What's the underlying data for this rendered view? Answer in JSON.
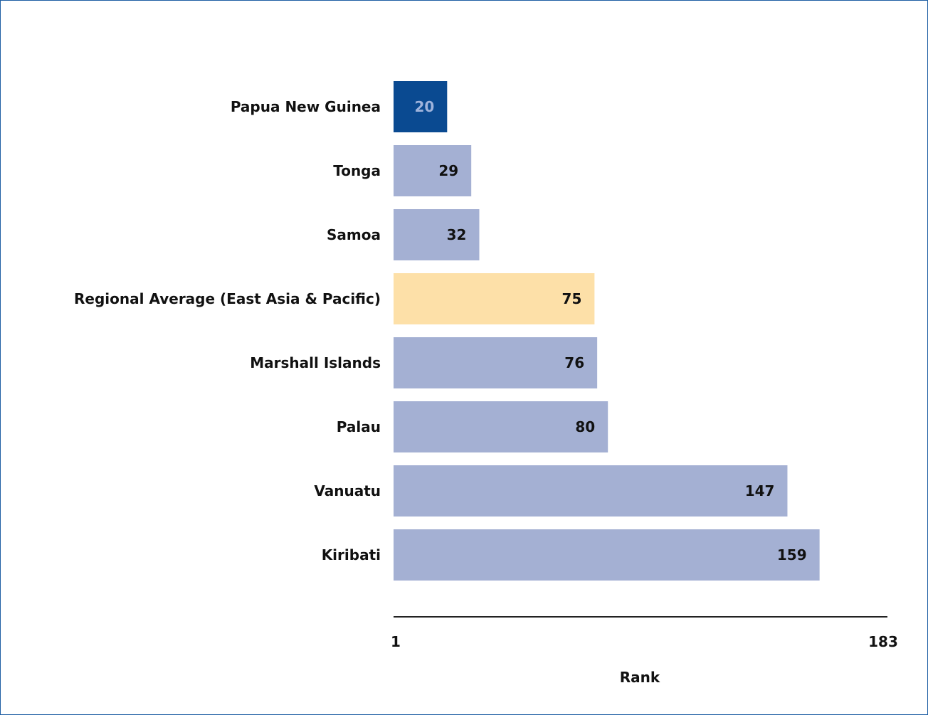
{
  "chart_data": {
    "type": "bar",
    "orientation": "horizontal",
    "title": "",
    "xlabel": "Rank",
    "ylabel": "",
    "xlim": [
      1,
      183
    ],
    "x_ticks": [
      "1",
      "183"
    ],
    "categories": [
      "Papua New Guinea",
      "Tonga",
      "Samoa",
      "Regional Average (East Asia & Pacific)",
      "Marshall Islands",
      "Palau",
      "Vanuatu",
      "Kiribati"
    ],
    "values": [
      20,
      29,
      32,
      75,
      76,
      80,
      147,
      159
    ],
    "bar_colors": [
      "#0a4a91",
      "#a4b0d3",
      "#a4b0d3",
      "#fde0a8",
      "#a4b0d3",
      "#a4b0d3",
      "#a4b0d3",
      "#a4b0d3"
    ],
    "value_label_colors": [
      "#9fb4dc",
      "#111111",
      "#111111",
      "#111111",
      "#111111",
      "#111111",
      "#111111",
      "#111111"
    ],
    "grid": false,
    "legend": "none"
  },
  "colors": {
    "frame_border": "#1f5fa3",
    "axis_line": "#222222"
  }
}
